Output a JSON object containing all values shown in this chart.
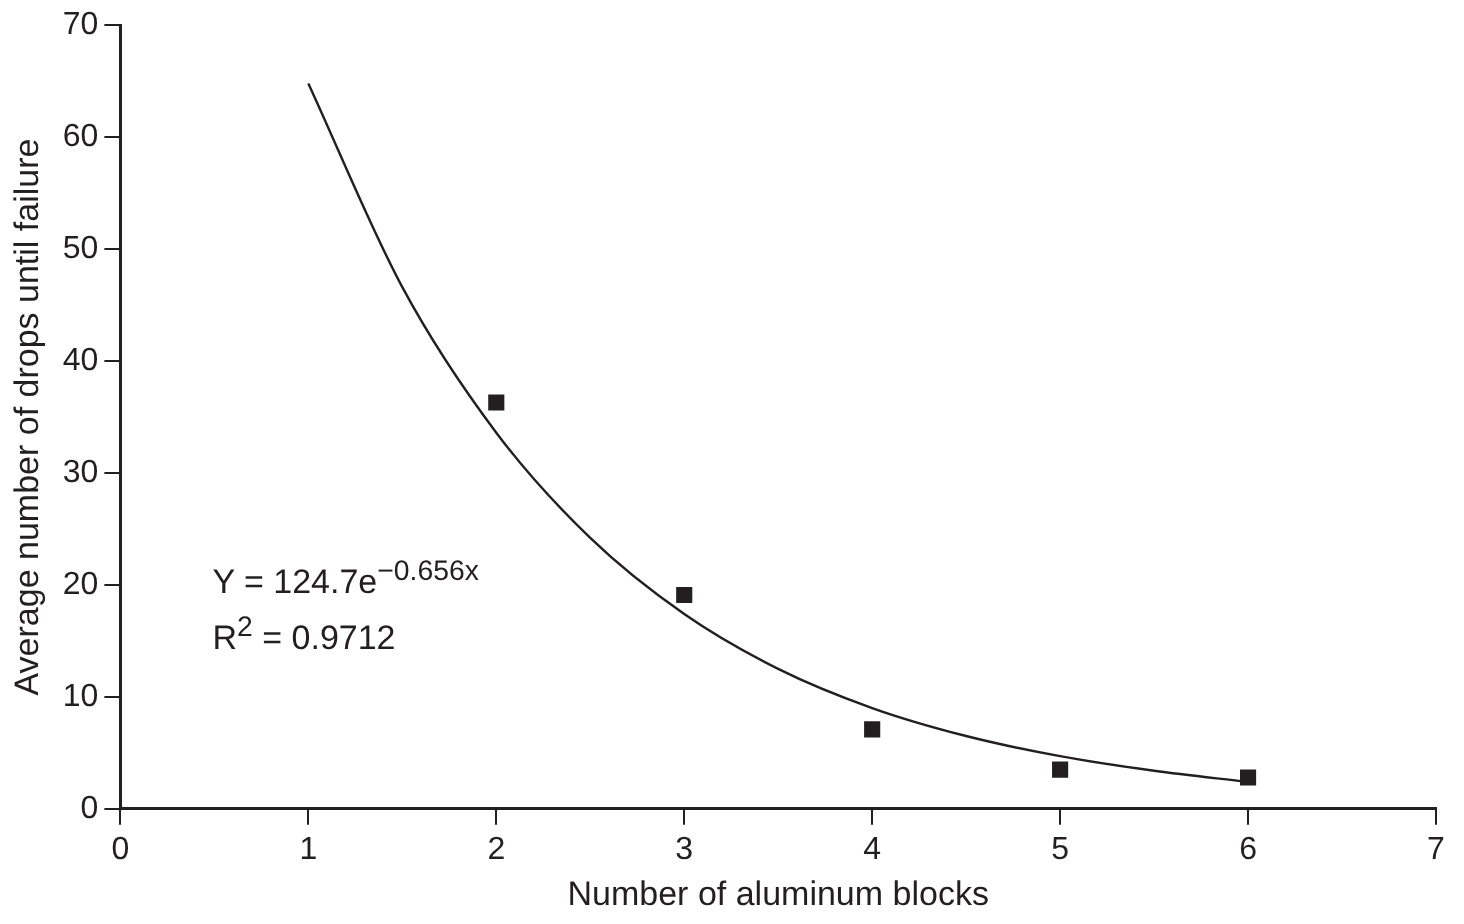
{
  "chart_data": {
    "type": "scatter",
    "xlabel": "Number of aluminum blocks",
    "ylabel": "Average number of drops until failure",
    "xlim": [
      0,
      7
    ],
    "xticks": [
      0,
      1,
      2,
      3,
      4,
      5,
      6,
      7
    ],
    "ylim": [
      0,
      70
    ],
    "yticks": [
      0,
      10,
      20,
      30,
      40,
      50,
      60,
      70
    ],
    "grid": false,
    "legend": false,
    "marker": "square",
    "series": [
      {
        "type": "scatter",
        "color": "#231f20",
        "x": [
          2,
          3,
          4,
          5,
          6
        ],
        "values": [
          36.3,
          19.1,
          7.1,
          3.5,
          2.8
        ]
      },
      {
        "type": "line",
        "color": "#231f20",
        "marker": "none",
        "line_style": "solid",
        "x": [
          1,
          1.5,
          2,
          2.5,
          3,
          3.5,
          4,
          4.5,
          5,
          5.5,
          6
        ],
        "values": [
          64.8,
          46.6,
          33.6,
          24.2,
          17.4,
          12.5,
          9.0,
          6.5,
          4.7,
          3.4,
          2.4
        ]
      }
    ],
    "annotations": [
      "Y = 124.7e$^{−0.656x}$",
      "R$^{2}$ = 0.9712"
    ]
  }
}
